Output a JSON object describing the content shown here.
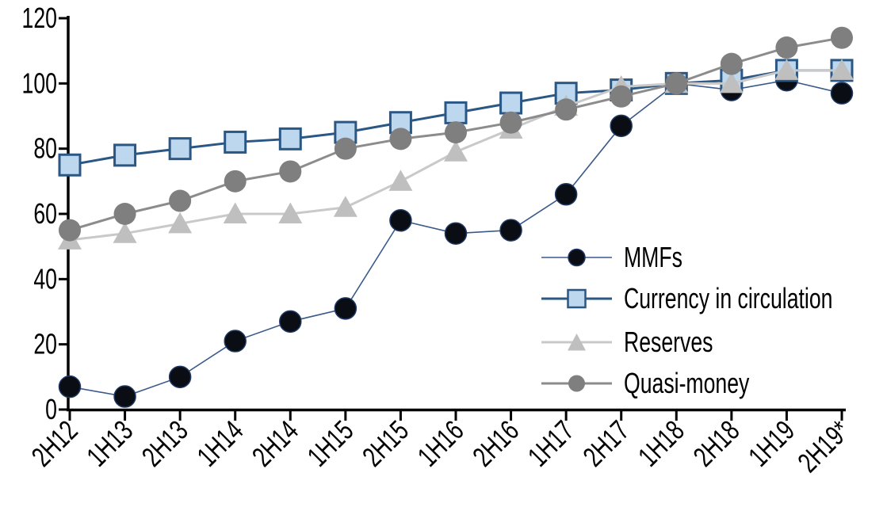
{
  "chart_data": {
    "type": "line",
    "title": "",
    "xlabel": "",
    "ylabel": "",
    "categories": [
      "2H12",
      "1H13",
      "2H13",
      "1H14",
      "2H14",
      "1H15",
      "2H15",
      "1H16",
      "2H16",
      "1H17",
      "2H17",
      "1H18",
      "2H18",
      "1H19",
      "2H19*"
    ],
    "series": [
      {
        "name": "MMFs",
        "marker": "circle",
        "marker_fill": "#0a0d14",
        "marker_stroke": "#1f3864",
        "marker_stroke_width": 1.5,
        "line_color": "#3a5a8c",
        "line_width": 1.6,
        "marker_size": 27,
        "values": [
          7,
          4,
          10,
          21,
          27,
          31,
          58,
          54,
          55,
          66,
          87,
          100,
          98,
          101,
          97
        ]
      },
      {
        "name": "Currency in circulation",
        "marker": "square",
        "marker_fill": "#bdd7ee",
        "marker_stroke": "#2a5784",
        "marker_stroke_width": 3,
        "line_color": "#2a5784",
        "line_width": 3,
        "marker_size": 26,
        "values": [
          75,
          78,
          80,
          82,
          83,
          85,
          88,
          91,
          94,
          97,
          98,
          100,
          101,
          104,
          104
        ]
      },
      {
        "name": "Reserves",
        "marker": "triangle",
        "marker_fill": "#bfbfbf",
        "marker_stroke": "none",
        "marker_stroke_width": 0,
        "line_color": "#c9c9c9",
        "line_width": 3,
        "marker_size": 27,
        "values": [
          52,
          54,
          57,
          60,
          60,
          62,
          70,
          79,
          86,
          93,
          99,
          100,
          100,
          104,
          104
        ]
      },
      {
        "name": "Quasi-money",
        "marker": "circle",
        "marker_fill": "#7f7f7f",
        "marker_stroke": "none",
        "marker_stroke_width": 0,
        "line_color": "#8c8c8c",
        "line_width": 3,
        "marker_size": 28,
        "values": [
          55,
          60,
          64,
          70,
          73,
          80,
          83,
          85,
          88,
          92,
          96,
          100,
          106,
          111,
          114
        ]
      }
    ],
    "ylim": [
      0,
      120
    ],
    "ytick_step": 20,
    "yticks": [
      0,
      20,
      40,
      60,
      80,
      100,
      120
    ],
    "grid": false,
    "legend_position": "inside-right",
    "axis_color": "#000000"
  }
}
